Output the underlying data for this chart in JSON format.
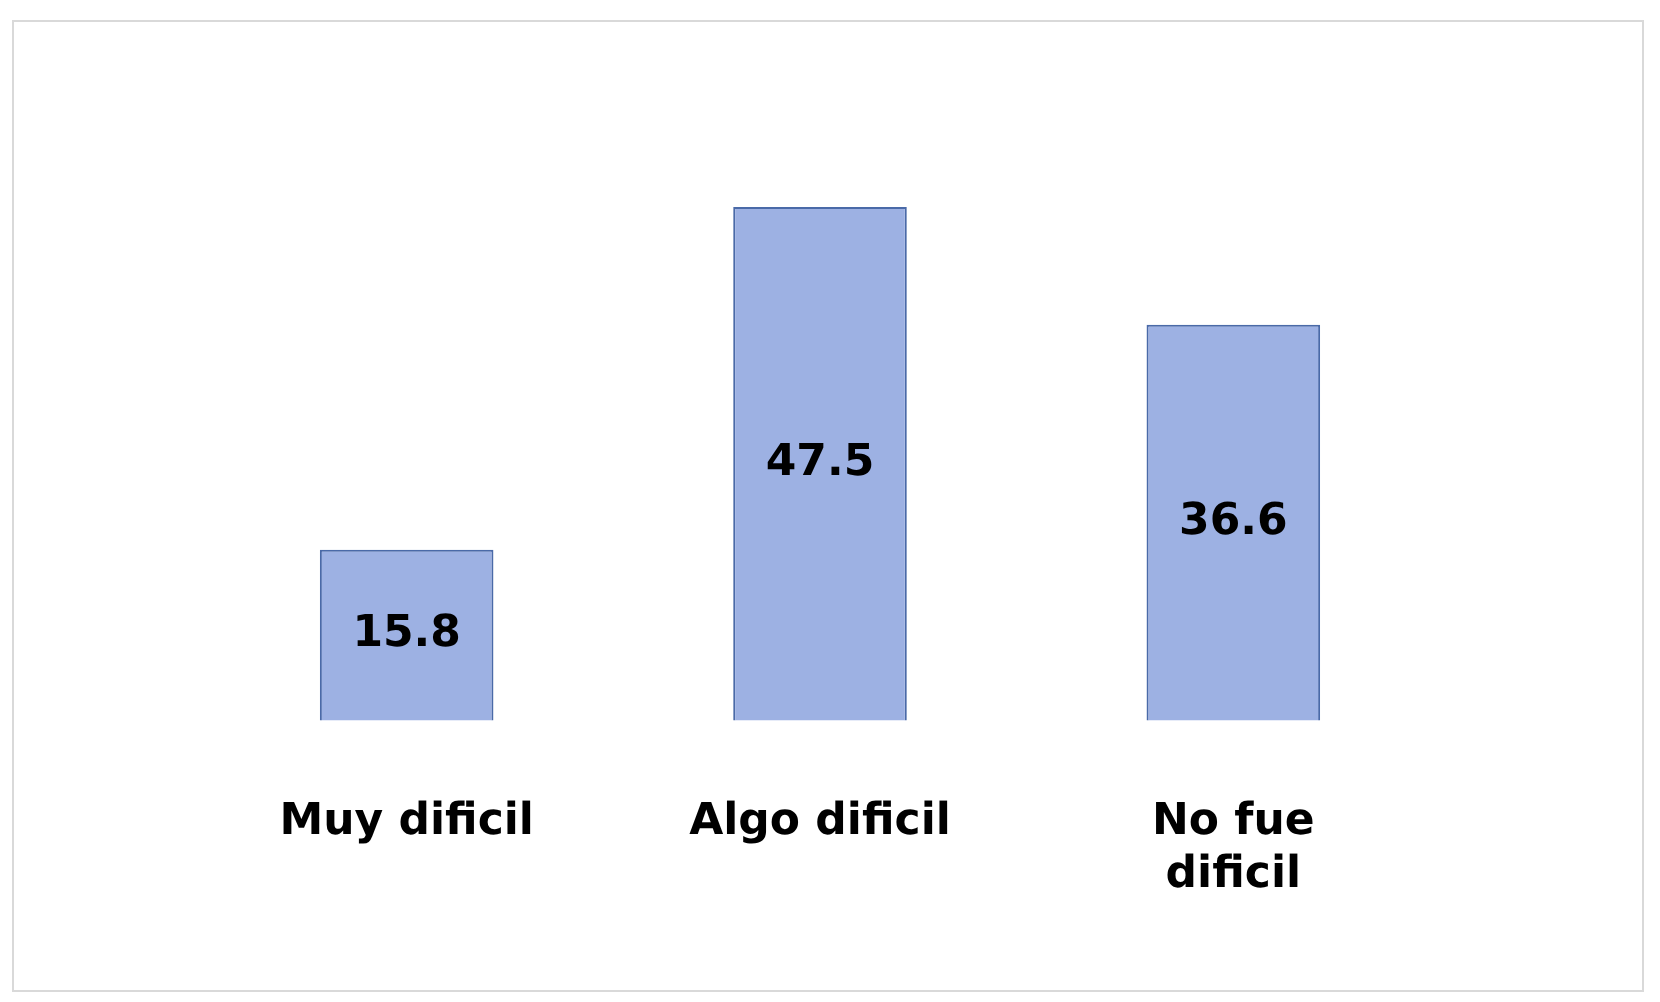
{
  "chart_data": {
    "type": "bar",
    "categories": [
      "Muy dificil",
      "Algo dificil",
      "No fue dificil"
    ],
    "values": [
      15.8,
      47.5,
      36.6
    ],
    "color": "#9db1e3",
    "data_labels": true
  }
}
